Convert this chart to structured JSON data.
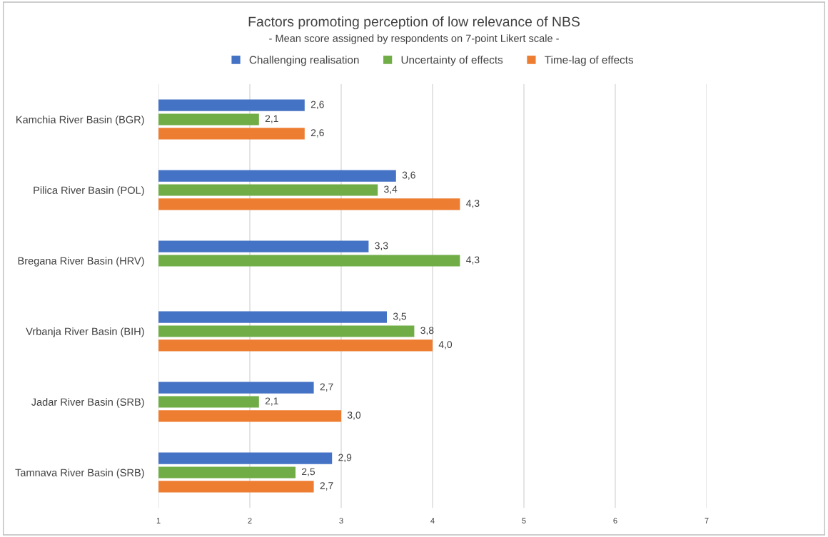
{
  "chart_data": {
    "type": "bar",
    "orientation": "horizontal",
    "title": "Factors promoting perception of low relevance of NBS",
    "subtitle": "- Mean score assigned by respondents on 7-point Likert scale -",
    "categories": [
      "Kamchia River Basin (BGR)",
      "Pilica River Basin (POL)",
      "Bregana River Basin (HRV)",
      "Vrbanja River Basin (BIH)",
      "Jadar River Basin (SRB)",
      "Tamnava River Basin (SRB)"
    ],
    "series": [
      {
        "name": "Challenging realisation",
        "color": "#4472c4",
        "values": [
          2.6,
          3.6,
          3.3,
          3.5,
          2.7,
          2.9
        ],
        "value_labels": [
          "2,6",
          "3,6",
          "3,3",
          "3,5",
          "2,7",
          "2,9"
        ]
      },
      {
        "name": "Uncertainty of effects",
        "color": "#70ad47",
        "values": [
          2.1,
          3.4,
          4.3,
          3.8,
          2.1,
          2.5
        ],
        "value_labels": [
          "2,1",
          "3,4",
          "4,3",
          "3,8",
          "2,1",
          "2,5"
        ]
      },
      {
        "name": "Time-lag of effects",
        "color": "#ed7d31",
        "values": [
          2.6,
          4.3,
          null,
          4.0,
          3.0,
          2.7
        ],
        "value_labels": [
          "2,6",
          "4,3",
          null,
          "4,0",
          "3,0",
          "2,7"
        ]
      }
    ],
    "xlim": [
      1,
      7
    ],
    "xticks": [
      1,
      2,
      3,
      4,
      5,
      6,
      7
    ],
    "grid": "x",
    "legend": "top"
  }
}
